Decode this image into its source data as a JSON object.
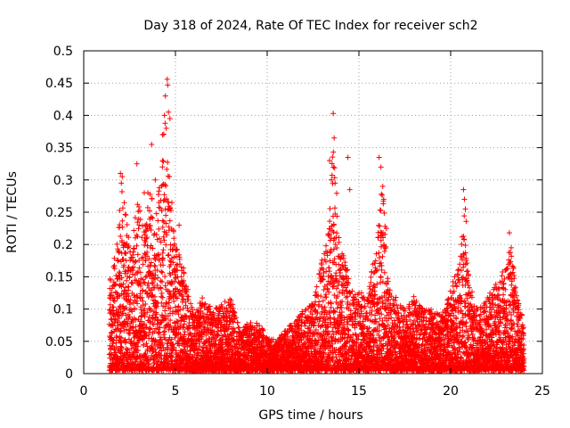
{
  "chart_data": {
    "type": "scatter",
    "title": "Day 318 of 2024, Rate Of TEC Index for receiver sch2",
    "xlabel": "GPS time / hours",
    "ylabel": "ROTI / TECUs",
    "xlim": [
      0,
      25
    ],
    "ylim": [
      0,
      0.5
    ],
    "xticks": [
      0,
      5,
      10,
      15,
      20,
      25
    ],
    "yticks": [
      0,
      0.05,
      0.1,
      0.15,
      0.2,
      0.25,
      0.3,
      0.35,
      0.4,
      0.45,
      0.5
    ],
    "grid": true,
    "marker": "+",
    "colors": {
      "points": "#ff0000",
      "axes": "#000000",
      "grid": "#a0a0a0"
    },
    "envelope": [
      [
        1.4,
        0.14
      ],
      [
        1.8,
        0.2
      ],
      [
        2.1,
        0.3
      ],
      [
        2.5,
        0.2
      ],
      [
        2.9,
        0.28
      ],
      [
        3.3,
        0.22
      ],
      [
        3.6,
        0.28
      ],
      [
        4.0,
        0.25
      ],
      [
        4.4,
        0.41
      ],
      [
        4.6,
        0.35
      ],
      [
        5.0,
        0.2
      ],
      [
        5.5,
        0.16
      ],
      [
        6.0,
        0.09
      ],
      [
        6.5,
        0.12
      ],
      [
        7.0,
        0.1
      ],
      [
        7.5,
        0.11
      ],
      [
        8.0,
        0.12
      ],
      [
        8.5,
        0.07
      ],
      [
        9.0,
        0.08
      ],
      [
        9.5,
        0.08
      ],
      [
        10.0,
        0.06
      ],
      [
        10.5,
        0.05
      ],
      [
        11.0,
        0.07
      ],
      [
        11.5,
        0.08
      ],
      [
        12.0,
        0.1
      ],
      [
        12.5,
        0.11
      ],
      [
        13.0,
        0.18
      ],
      [
        13.4,
        0.24
      ],
      [
        13.6,
        0.38
      ],
      [
        13.9,
        0.22
      ],
      [
        14.3,
        0.17
      ],
      [
        14.7,
        0.12
      ],
      [
        15.0,
        0.13
      ],
      [
        15.5,
        0.12
      ],
      [
        16.0,
        0.22
      ],
      [
        16.3,
        0.3
      ],
      [
        16.6,
        0.14
      ],
      [
        17.0,
        0.12
      ],
      [
        17.5,
        0.1
      ],
      [
        18.0,
        0.12
      ],
      [
        18.5,
        0.1
      ],
      [
        19.0,
        0.1
      ],
      [
        19.5,
        0.09
      ],
      [
        20.0,
        0.13
      ],
      [
        20.5,
        0.18
      ],
      [
        20.8,
        0.26
      ],
      [
        21.0,
        0.14
      ],
      [
        21.5,
        0.1
      ],
      [
        22.0,
        0.12
      ],
      [
        22.5,
        0.14
      ],
      [
        23.0,
        0.17
      ],
      [
        23.3,
        0.2
      ],
      [
        23.6,
        0.12
      ],
      [
        24.0,
        0.08
      ]
    ],
    "peaks": [
      [
        2.0,
        0.31
      ],
      [
        2.05,
        0.295
      ],
      [
        2.1,
        0.305
      ],
      [
        2.9,
        0.325
      ],
      [
        3.3,
        0.28
      ],
      [
        3.5,
        0.28
      ],
      [
        3.7,
        0.355
      ],
      [
        3.9,
        0.3
      ],
      [
        4.1,
        0.265
      ],
      [
        4.3,
        0.33
      ],
      [
        4.4,
        0.4
      ],
      [
        4.45,
        0.43
      ],
      [
        4.5,
        0.38
      ],
      [
        4.55,
        0.456
      ],
      [
        4.58,
        0.447
      ],
      [
        4.62,
        0.405
      ],
      [
        4.7,
        0.395
      ],
      [
        4.9,
        0.22
      ],
      [
        5.2,
        0.23
      ],
      [
        13.4,
        0.33
      ],
      [
        13.5,
        0.3
      ],
      [
        13.6,
        0.403
      ],
      [
        13.65,
        0.365
      ],
      [
        13.7,
        0.295
      ],
      [
        14.4,
        0.335
      ],
      [
        14.5,
        0.285
      ],
      [
        16.1,
        0.335
      ],
      [
        16.2,
        0.32
      ],
      [
        16.3,
        0.29
      ],
      [
        16.35,
        0.27
      ],
      [
        16.5,
        0.225
      ],
      [
        20.7,
        0.285
      ],
      [
        20.75,
        0.27
      ],
      [
        20.8,
        0.255
      ],
      [
        23.2,
        0.218
      ],
      [
        23.3,
        0.195
      ]
    ]
  }
}
